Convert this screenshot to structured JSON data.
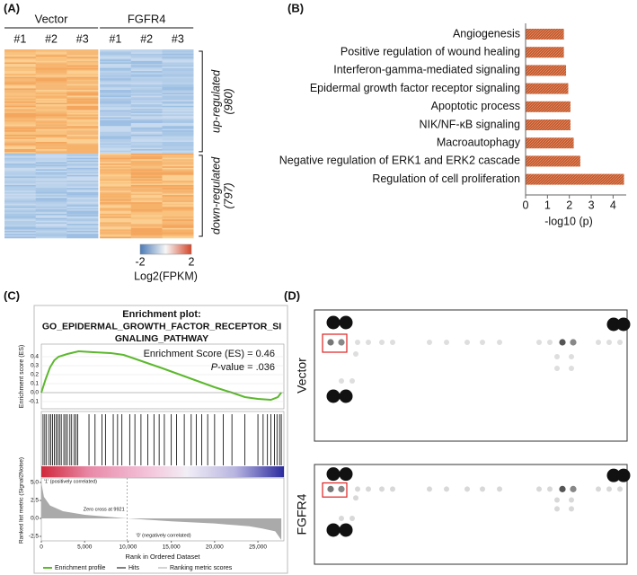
{
  "chart_data": [
    {
      "type": "heatmap",
      "panel_label": "(A)",
      "groups": [
        {
          "name": "Vector",
          "samples": [
            "#1",
            "#2",
            "#3"
          ]
        },
        {
          "name": "FGFR4",
          "samples": [
            "#1",
            "#2",
            "#3"
          ]
        }
      ],
      "row_groups": [
        {
          "name": "up-regulated",
          "count": 980,
          "count_label": "(980)"
        },
        {
          "name": "down-regulated",
          "count": 797,
          "count_label": "(797)"
        }
      ],
      "colorbar": {
        "ticks": [
          -2,
          2
        ],
        "label": "Log2(FPKM)",
        "colors": [
          "#4a7bb7",
          "#f7f7f7",
          "#d4462a"
        ]
      }
    },
    {
      "type": "bar",
      "panel_label": "(B)",
      "orientation": "horizontal",
      "categories": [
        "Angiogenesis",
        "Positive regulation of wound healing",
        "Interferon-gamma-mediated signaling",
        "Epidermal growth factor receptor signaling",
        "Apoptotic process",
        "NIK/NF-κB signaling",
        "Macroautophagy",
        "Negative regulation of ERK1 and ERK2 cascade",
        "Regulation of cell proliferation"
      ],
      "values": [
        1.75,
        1.75,
        1.85,
        1.95,
        2.05,
        2.05,
        2.2,
        2.5,
        4.5
      ],
      "color": "#c65a2e",
      "x_label": "-log10 (p)",
      "xlim": [
        0,
        4.6
      ],
      "xticks": [
        0,
        1,
        2,
        3,
        4
      ]
    },
    {
      "type": "line",
      "panel_label": "(C)",
      "title": [
        "Enrichment plot:",
        "GO_EPIDERMAL_GROWTH_FACTOR_RECEPTOR_SI",
        "GNALING_PATHWAY"
      ],
      "es_label": "Enrichment Score (ES) = 0.46",
      "p_label": [
        "P",
        "-value = .036"
      ],
      "y_label": "Enrichment score (ES)",
      "y2_label": "Ranked list metric (Signal2Noise)",
      "x_label": "Rank in Ordered Dataset",
      "xlim": [
        0,
        28000
      ],
      "xticks": [
        0,
        {
          "value": 5000,
          "label": "5,000"
        },
        {
          "value": 10000,
          "label": "10,000"
        },
        {
          "value": 15000,
          "label": "15,000"
        },
        {
          "value": 20000,
          "label": "20,000"
        },
        {
          "value": 25000,
          "label": "25,000"
        }
      ],
      "ylim": [
        -0.18,
        0.54
      ],
      "yticks": [
        0.4,
        0.3,
        0.2,
        0.1,
        {
          "value": 0,
          "label": "0.0"
        },
        -0.1
      ],
      "y2lim": [
        -3.125,
        5.625
      ],
      "y2ticks": [
        {
          "value": 5,
          "label": "5.0"
        },
        2.5,
        {
          "value": 0,
          "label": "0.0"
        },
        -2.5
      ],
      "series": [
        {
          "name": "Enrichment profile",
          "color": "#5cb82e",
          "x": [
            0,
            500,
            1000,
            1500,
            2000,
            3000,
            4300,
            6000,
            8000,
            9500,
            11000,
            12500,
            14000,
            16000,
            18000,
            20000,
            22000,
            23500,
            25000,
            26500,
            27300,
            27700
          ],
          "values": [
            0,
            0.15,
            0.28,
            0.36,
            0.4,
            0.43,
            0.46,
            0.45,
            0.44,
            0.42,
            0.37,
            0.32,
            0.27,
            0.2,
            0.13,
            0.06,
            0,
            -0.05,
            -0.07,
            -0.08,
            -0.05,
            0
          ]
        },
        {
          "name": "Hits",
          "color": "#000000",
          "x": [
            200,
            400,
            600,
            900,
            1100,
            1300,
            1500,
            1700,
            1900,
            2100,
            2300,
            2600,
            2800,
            3000,
            3300,
            3500,
            3800,
            4000,
            4200,
            5500,
            6200,
            7000,
            7400,
            8300,
            8800,
            9300,
            10200,
            10800,
            11500,
            12300,
            13000,
            13600,
            14200,
            15000,
            15600,
            16500,
            17300,
            17900,
            18500,
            19200,
            20000,
            21000,
            22000,
            23500,
            25000,
            25600,
            26100,
            26500,
            26900,
            27200,
            27500,
            27700
          ]
        },
        {
          "name": "Ranking metric scores",
          "color": "#aaaaaa",
          "axis": "y2",
          "x": [
            0,
            300,
            1000,
            2500,
            5000,
            9921,
            15000,
            20000,
            24000,
            25500,
            27000,
            27700
          ],
          "values": [
            5.0,
            3.0,
            1.8,
            1.0,
            0.5,
            0,
            -0.4,
            -0.7,
            -1.1,
            -1.4,
            -1.8,
            -3.0
          ]
        }
      ],
      "annotations": [
        {
          "text": "'1' (positively correlated)",
          "color": "#cc2222"
        },
        {
          "text": "Zero cross at 9921",
          "x": 9921,
          "color": "#333333"
        },
        {
          "text": "'0' (negatively correlated)",
          "color": "#2233aa"
        }
      ]
    },
    {
      "type": "image",
      "panel_label": "(D)",
      "rows": [
        "Vector",
        "FGFR4"
      ]
    }
  ]
}
